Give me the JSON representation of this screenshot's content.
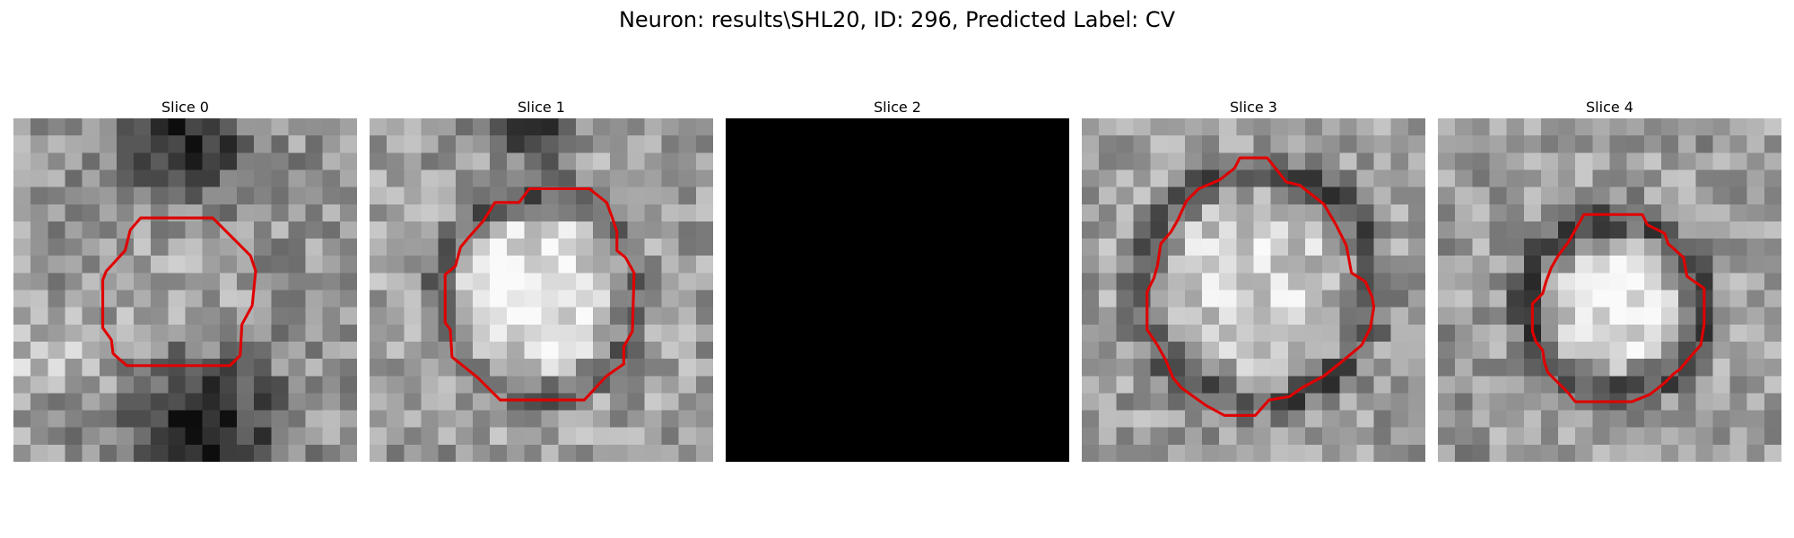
{
  "figure": {
    "title": "Neuron: results\\SHL20, ID: 296, Predicted Label: CV",
    "panels": [
      {
        "title": "Slice 0",
        "seed": 11,
        "type": "slice0",
        "contour": [
          [
            7.4,
            5.8
          ],
          [
            11.6,
            5.8
          ],
          [
            13.8,
            8.0
          ],
          [
            14.1,
            8.9
          ],
          [
            13.9,
            10.9
          ],
          [
            13.3,
            12.0
          ],
          [
            13.2,
            13.8
          ],
          [
            12.6,
            14.4
          ],
          [
            6.6,
            14.4
          ],
          [
            5.8,
            13.7
          ],
          [
            5.7,
            12.9
          ],
          [
            5.2,
            12.2
          ],
          [
            5.2,
            9.4
          ],
          [
            5.4,
            8.9
          ],
          [
            6.5,
            7.7
          ],
          [
            6.8,
            6.5
          ]
        ]
      },
      {
        "title": "Slice 1",
        "seed": 23,
        "type": "slice1",
        "contour": [
          [
            9.3,
            4.1
          ],
          [
            12.8,
            4.1
          ],
          [
            13.8,
            4.9
          ],
          [
            14.1,
            5.7
          ],
          [
            14.4,
            6.6
          ],
          [
            14.4,
            7.7
          ],
          [
            14.9,
            8.1
          ],
          [
            15.4,
            9.0
          ],
          [
            15.3,
            12.4
          ],
          [
            14.8,
            13.3
          ],
          [
            14.8,
            14.3
          ],
          [
            13.8,
            15.0
          ],
          [
            12.5,
            16.4
          ],
          [
            7.6,
            16.4
          ],
          [
            6.3,
            15.1
          ],
          [
            4.8,
            13.9
          ],
          [
            4.7,
            12.3
          ],
          [
            4.4,
            11.9
          ],
          [
            4.4,
            9.1
          ],
          [
            5.0,
            8.6
          ],
          [
            5.3,
            7.5
          ],
          [
            5.8,
            6.9
          ],
          [
            6.6,
            6.0
          ],
          [
            7.3,
            4.9
          ],
          [
            8.7,
            4.9
          ]
        ]
      },
      {
        "title": "Slice 2",
        "seed": 0,
        "type": "black",
        "contour": []
      },
      {
        "title": "Slice 3",
        "seed": 37,
        "type": "slice3",
        "contour": [
          [
            9.2,
            2.3
          ],
          [
            10.8,
            2.3
          ],
          [
            11.9,
            3.7
          ],
          [
            12.7,
            3.9
          ],
          [
            14.1,
            5.0
          ],
          [
            14.8,
            6.2
          ],
          [
            15.4,
            7.4
          ],
          [
            15.7,
            9.0
          ],
          [
            16.5,
            9.5
          ],
          [
            16.9,
            10.4
          ],
          [
            17.0,
            11.0
          ],
          [
            16.8,
            12.2
          ],
          [
            16.3,
            13.2
          ],
          [
            15.1,
            14.2
          ],
          [
            14.1,
            15.0
          ],
          [
            12.8,
            15.7
          ],
          [
            12.1,
            16.2
          ],
          [
            10.9,
            16.4
          ],
          [
            10.1,
            17.3
          ],
          [
            8.3,
            17.3
          ],
          [
            7.2,
            16.7
          ],
          [
            5.8,
            15.7
          ],
          [
            5.3,
            15.1
          ],
          [
            4.9,
            14.1
          ],
          [
            4.4,
            13.2
          ],
          [
            3.8,
            12.3
          ],
          [
            3.8,
            10.1
          ],
          [
            4.2,
            9.3
          ],
          [
            4.4,
            8.6
          ],
          [
            4.6,
            7.3
          ],
          [
            5.2,
            6.6
          ],
          [
            5.6,
            5.9
          ],
          [
            6.1,
            4.8
          ],
          [
            6.8,
            4.1
          ],
          [
            8.0,
            3.6
          ],
          [
            8.9,
            2.9
          ]
        ]
      },
      {
        "title": "Slice 4",
        "seed": 53,
        "type": "slice4",
        "contour": [
          [
            8.5,
            5.6
          ],
          [
            11.9,
            5.6
          ],
          [
            12.2,
            6.2
          ],
          [
            13.2,
            6.7
          ],
          [
            13.4,
            7.3
          ],
          [
            14.3,
            8.1
          ],
          [
            14.5,
            9.2
          ],
          [
            15.5,
            9.9
          ],
          [
            15.5,
            12.0
          ],
          [
            15.3,
            13.2
          ],
          [
            14.6,
            14.0
          ],
          [
            14.1,
            14.6
          ],
          [
            13.7,
            14.9
          ],
          [
            13.2,
            15.4
          ],
          [
            12.7,
            15.8
          ],
          [
            12.3,
            16.1
          ],
          [
            11.3,
            16.5
          ],
          [
            8.0,
            16.5
          ],
          [
            7.6,
            16.0
          ],
          [
            7.0,
            15.4
          ],
          [
            6.4,
            14.8
          ],
          [
            6.2,
            14.2
          ],
          [
            6.1,
            13.5
          ],
          [
            5.7,
            13.0
          ],
          [
            5.5,
            12.4
          ],
          [
            5.5,
            10.8
          ],
          [
            6.1,
            10.2
          ],
          [
            6.3,
            9.5
          ],
          [
            6.6,
            8.7
          ],
          [
            7.0,
            8.0
          ],
          [
            7.6,
            7.2
          ]
        ]
      }
    ]
  }
}
